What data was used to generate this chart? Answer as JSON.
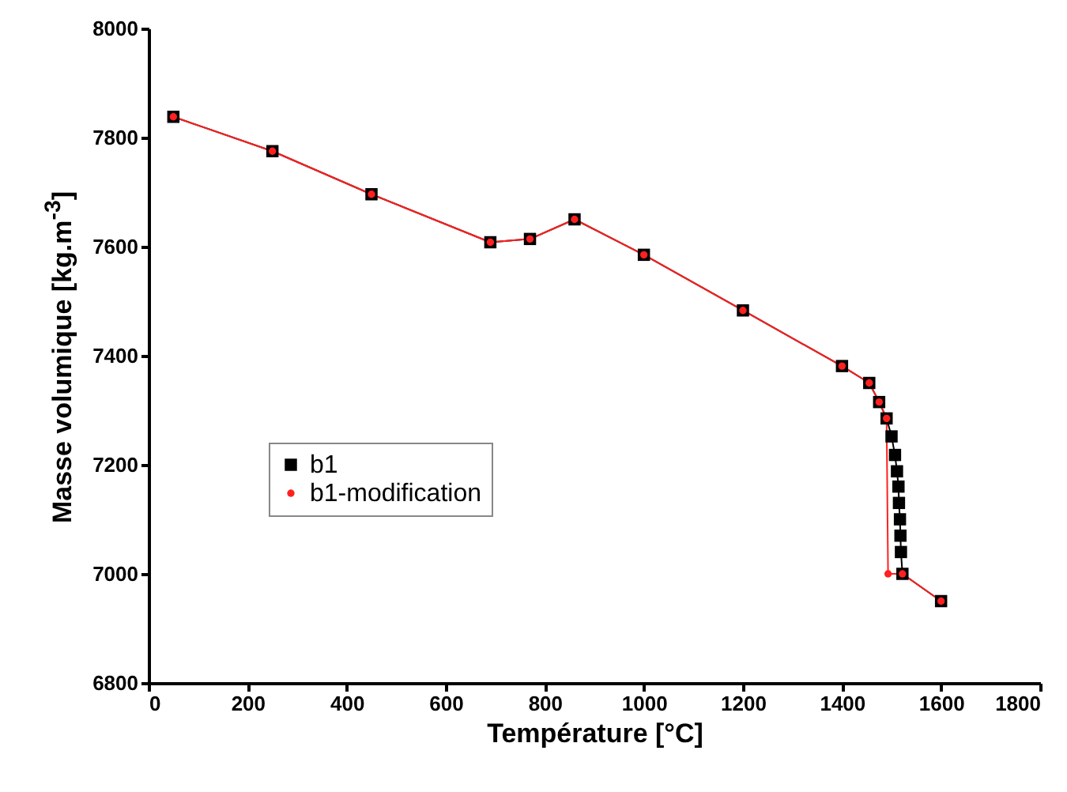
{
  "chart_data": {
    "type": "line",
    "xlabel": "Température [°C]",
    "ylabel": "Masse volumique [kg.m$^{-3}$]",
    "xlim": [
      0,
      1800
    ],
    "xticks": [
      0,
      200,
      400,
      600,
      800,
      1000,
      1200,
      1400,
      1600,
      1800
    ],
    "ylim": [
      6800,
      8000
    ],
    "yticks": [
      6800,
      7000,
      7200,
      7400,
      7600,
      7800,
      8000
    ],
    "grid": false,
    "legend": "left",
    "series": [
      {
        "name": "b1",
        "color": "#000000",
        "marker": "square",
        "x": [
          50,
          250,
          450,
          690,
          770,
          860,
          1000,
          1200,
          1400,
          1455,
          1475,
          1490,
          1500,
          1507,
          1511,
          1514,
          1515,
          1517,
          1518,
          1519,
          1522,
          1600
        ],
        "values": [
          7838,
          7775,
          7696,
          7608,
          7614,
          7650,
          7585,
          7483,
          7381,
          7350,
          7315,
          7285,
          7252,
          7218,
          7188,
          7160,
          7130,
          7100,
          7070,
          7040,
          7000,
          6950
        ]
      },
      {
        "name": "b1-modification",
        "color": "#ff2020",
        "marker": "circle",
        "x": [
          50,
          250,
          450,
          690,
          770,
          860,
          1000,
          1200,
          1400,
          1455,
          1475,
          1490,
          1493,
          1522,
          1600
        ],
        "values": [
          7838,
          7775,
          7696,
          7608,
          7614,
          7650,
          7585,
          7483,
          7381,
          7350,
          7315,
          7285,
          7000,
          7000,
          6950
        ]
      }
    ]
  }
}
